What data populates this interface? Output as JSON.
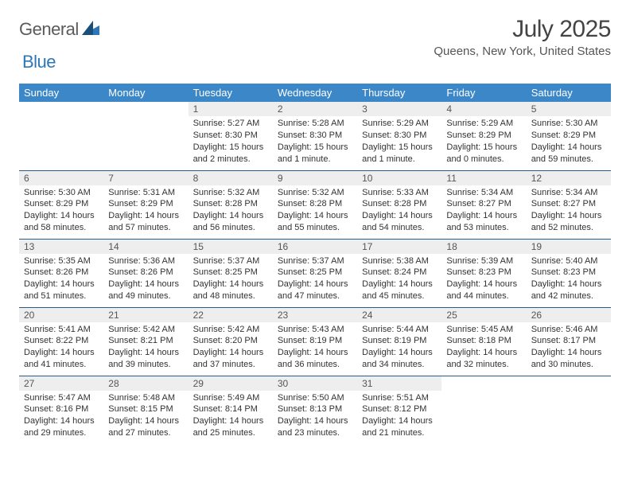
{
  "logo": {
    "general": "General",
    "blue": "Blue"
  },
  "title": "July 2025",
  "subtitle": "Queens, New York, United States",
  "colors": {
    "header_bg": "#3b87c8",
    "header_text": "#ffffff",
    "daynum_bg": "#eeeeee",
    "row_border": "#2d5b87",
    "logo_blue": "#2c77b8",
    "logo_gray": "#5b5b5b"
  },
  "day_headers": [
    "Sunday",
    "Monday",
    "Tuesday",
    "Wednesday",
    "Thursday",
    "Friday",
    "Saturday"
  ],
  "weeks": [
    [
      {
        "empty": true
      },
      {
        "empty": true
      },
      {
        "n": "1",
        "sr": "5:27 AM",
        "ss": "8:30 PM",
        "dl": "15 hours and 2 minutes."
      },
      {
        "n": "2",
        "sr": "5:28 AM",
        "ss": "8:30 PM",
        "dl": "15 hours and 1 minute."
      },
      {
        "n": "3",
        "sr": "5:29 AM",
        "ss": "8:30 PM",
        "dl": "15 hours and 1 minute."
      },
      {
        "n": "4",
        "sr": "5:29 AM",
        "ss": "8:29 PM",
        "dl": "15 hours and 0 minutes."
      },
      {
        "n": "5",
        "sr": "5:30 AM",
        "ss": "8:29 PM",
        "dl": "14 hours and 59 minutes."
      }
    ],
    [
      {
        "n": "6",
        "sr": "5:30 AM",
        "ss": "8:29 PM",
        "dl": "14 hours and 58 minutes."
      },
      {
        "n": "7",
        "sr": "5:31 AM",
        "ss": "8:29 PM",
        "dl": "14 hours and 57 minutes."
      },
      {
        "n": "8",
        "sr": "5:32 AM",
        "ss": "8:28 PM",
        "dl": "14 hours and 56 minutes."
      },
      {
        "n": "9",
        "sr": "5:32 AM",
        "ss": "8:28 PM",
        "dl": "14 hours and 55 minutes."
      },
      {
        "n": "10",
        "sr": "5:33 AM",
        "ss": "8:28 PM",
        "dl": "14 hours and 54 minutes."
      },
      {
        "n": "11",
        "sr": "5:34 AM",
        "ss": "8:27 PM",
        "dl": "14 hours and 53 minutes."
      },
      {
        "n": "12",
        "sr": "5:34 AM",
        "ss": "8:27 PM",
        "dl": "14 hours and 52 minutes."
      }
    ],
    [
      {
        "n": "13",
        "sr": "5:35 AM",
        "ss": "8:26 PM",
        "dl": "14 hours and 51 minutes."
      },
      {
        "n": "14",
        "sr": "5:36 AM",
        "ss": "8:26 PM",
        "dl": "14 hours and 49 minutes."
      },
      {
        "n": "15",
        "sr": "5:37 AM",
        "ss": "8:25 PM",
        "dl": "14 hours and 48 minutes."
      },
      {
        "n": "16",
        "sr": "5:37 AM",
        "ss": "8:25 PM",
        "dl": "14 hours and 47 minutes."
      },
      {
        "n": "17",
        "sr": "5:38 AM",
        "ss": "8:24 PM",
        "dl": "14 hours and 45 minutes."
      },
      {
        "n": "18",
        "sr": "5:39 AM",
        "ss": "8:23 PM",
        "dl": "14 hours and 44 minutes."
      },
      {
        "n": "19",
        "sr": "5:40 AM",
        "ss": "8:23 PM",
        "dl": "14 hours and 42 minutes."
      }
    ],
    [
      {
        "n": "20",
        "sr": "5:41 AM",
        "ss": "8:22 PM",
        "dl": "14 hours and 41 minutes."
      },
      {
        "n": "21",
        "sr": "5:42 AM",
        "ss": "8:21 PM",
        "dl": "14 hours and 39 minutes."
      },
      {
        "n": "22",
        "sr": "5:42 AM",
        "ss": "8:20 PM",
        "dl": "14 hours and 37 minutes."
      },
      {
        "n": "23",
        "sr": "5:43 AM",
        "ss": "8:19 PM",
        "dl": "14 hours and 36 minutes."
      },
      {
        "n": "24",
        "sr": "5:44 AM",
        "ss": "8:19 PM",
        "dl": "14 hours and 34 minutes."
      },
      {
        "n": "25",
        "sr": "5:45 AM",
        "ss": "8:18 PM",
        "dl": "14 hours and 32 minutes."
      },
      {
        "n": "26",
        "sr": "5:46 AM",
        "ss": "8:17 PM",
        "dl": "14 hours and 30 minutes."
      }
    ],
    [
      {
        "n": "27",
        "sr": "5:47 AM",
        "ss": "8:16 PM",
        "dl": "14 hours and 29 minutes."
      },
      {
        "n": "28",
        "sr": "5:48 AM",
        "ss": "8:15 PM",
        "dl": "14 hours and 27 minutes."
      },
      {
        "n": "29",
        "sr": "5:49 AM",
        "ss": "8:14 PM",
        "dl": "14 hours and 25 minutes."
      },
      {
        "n": "30",
        "sr": "5:50 AM",
        "ss": "8:13 PM",
        "dl": "14 hours and 23 minutes."
      },
      {
        "n": "31",
        "sr": "5:51 AM",
        "ss": "8:12 PM",
        "dl": "14 hours and 21 minutes."
      },
      {
        "empty": true
      },
      {
        "empty": true
      }
    ]
  ],
  "labels": {
    "sunrise": "Sunrise: ",
    "sunset": "Sunset: ",
    "daylight": "Daylight: "
  }
}
